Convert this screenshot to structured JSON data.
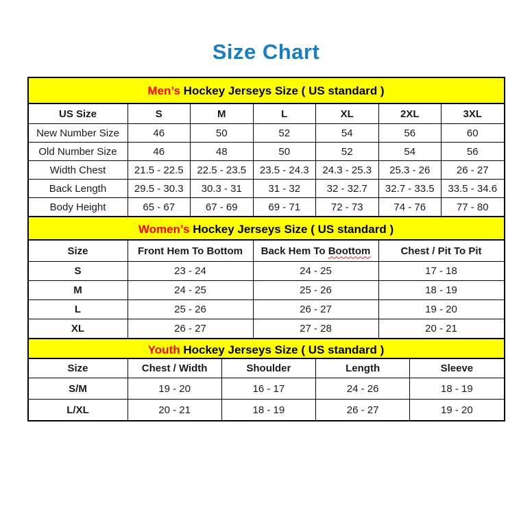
{
  "page": {
    "title": "Size Chart"
  },
  "colors": {
    "title_blue": "#187EC4",
    "band_yellow": "#FFFF00",
    "accent_red": "#FF0000",
    "border_black": "#000000",
    "squiggle_red": "#CC2222"
  },
  "men": {
    "band": {
      "prefix": "Men’s",
      "rest": " Hockey Jerseys Size ( US standard )"
    },
    "header": [
      "US Size",
      "S",
      "M",
      "L",
      "XL",
      "2XL",
      "3XL"
    ],
    "rows": [
      {
        "label": "New Number Size",
        "values": [
          "46",
          "50",
          "52",
          "54",
          "56",
          "60"
        ]
      },
      {
        "label": "Old Number Size",
        "values": [
          "46",
          "48",
          "50",
          "52",
          "54",
          "56"
        ]
      },
      {
        "label": "Width Chest",
        "values": [
          "21.5 - 22.5",
          "22.5 - 23.5",
          "23.5 - 24.3",
          "24.3 - 25.3",
          "25.3 - 26",
          "26 - 27"
        ]
      },
      {
        "label": "Back Length",
        "values": [
          "29.5 - 30.3",
          "30.3 - 31",
          "31 - 32",
          "32 - 32.7",
          "32.7 - 33.5",
          "33.5 - 34.6"
        ]
      },
      {
        "label": "Body Height",
        "values": [
          "65 - 67",
          "67 - 69",
          "69 - 71",
          "72 - 73",
          "74 - 76",
          "77 - 80"
        ]
      }
    ]
  },
  "women": {
    "band": {
      "prefix": "Women’s",
      "rest": " Hockey Jerseys Size ( US standard )"
    },
    "header": {
      "size": "Size",
      "front": "Front Hem To Bottom",
      "back_prefix": "Back Hem To ",
      "back_word": "Boottom",
      "chest": "Chest / Pit To Pit"
    },
    "rows": [
      {
        "label": "S",
        "values": [
          "23 - 24",
          "24 - 25",
          "17 - 18"
        ]
      },
      {
        "label": "M",
        "values": [
          "24 - 25",
          "25 - 26",
          "18 - 19"
        ]
      },
      {
        "label": "L",
        "values": [
          "25 - 26",
          "26 - 27",
          "19 - 20"
        ]
      },
      {
        "label": "XL",
        "values": [
          "26 - 27",
          "27 - 28",
          "20 - 21"
        ]
      }
    ]
  },
  "youth": {
    "band": {
      "prefix": "Youth",
      "rest": " Hockey Jerseys Size ( US standard )"
    },
    "header": [
      "Size",
      "Chest / Width",
      "Shoulder",
      "Length",
      "Sleeve"
    ],
    "rows": [
      {
        "label": "S/M",
        "values": [
          "19 - 20",
          "16 - 17",
          "24 - 26",
          "18 - 19"
        ]
      },
      {
        "label": "L/XL",
        "values": [
          "20 - 21",
          "18 - 19",
          "26 - 27",
          "19 - 20"
        ]
      }
    ]
  }
}
